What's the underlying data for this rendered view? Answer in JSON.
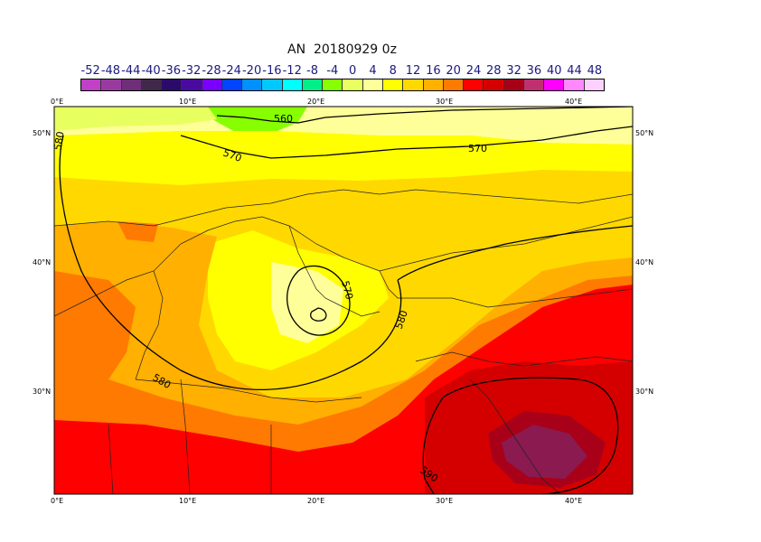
{
  "title": "AN  20180929 0z",
  "legend": {
    "labels": [
      "-52",
      "-48",
      "-44",
      "-40",
      "-36",
      "-32",
      "-28",
      "-24",
      "-20",
      "-16",
      "-12",
      "-8",
      "-4",
      "0",
      "4",
      "8",
      "12",
      "16",
      "20",
      "24",
      "28",
      "32",
      "36",
      "40",
      "44",
      "48"
    ],
    "colors": [
      "#c040c8",
      "#9a3aa0",
      "#6e2e78",
      "#402848",
      "#2a0a6a",
      "#4a0aa0",
      "#7a00ff",
      "#0044ff",
      "#0090ff",
      "#00c8ff",
      "#00ffff",
      "#00ee88",
      "#88ff00",
      "#e8ff60",
      "#ffff9a",
      "#ffff00",
      "#ffd800",
      "#ffb000",
      "#ff7a00",
      "#ff0000",
      "#d40000",
      "#a80018",
      "#c03070",
      "#ff00ff",
      "#ff88ff",
      "#ffd0ff"
    ]
  },
  "axes": {
    "x_ticks": [
      "0°E",
      "10°E",
      "20°E",
      "30°E",
      "40°E"
    ],
    "y_ticks": [
      "50°N",
      "40°N",
      "30°N"
    ]
  },
  "contours": {
    "labels": [
      "560",
      "570",
      "570",
      "570",
      "580",
      "580",
      "580",
      "590"
    ]
  },
  "map_colors": {
    "red": "#ff0000",
    "darkred": "#d40000",
    "maroon": "#a80018",
    "purple": "#8a1a50",
    "orange": "#ff7a00",
    "amber": "#ffb000",
    "gold": "#ffd800",
    "yellow": "#ffff00",
    "paleyellow": "#ffff9a",
    "lightgreen": "#e8ff60",
    "green": "#88ff00"
  }
}
